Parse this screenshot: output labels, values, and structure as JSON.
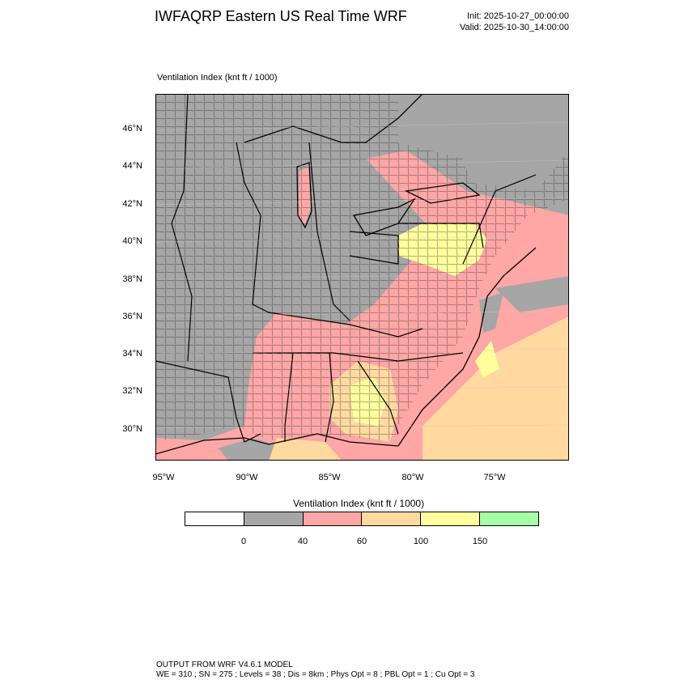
{
  "header": {
    "title": "IWFAQRP Eastern US Real Time WRF",
    "init": "Init: 2025-10-27_00:00:00",
    "valid": "Valid: 2025-10-30_14:00:00"
  },
  "map": {
    "subtitle": "Ventilation Index   (knt ft / 1000)",
    "lat_labels": [
      "46°N",
      "44°N",
      "42°N",
      "40°N",
      "38°N",
      "36°N",
      "34°N",
      "32°N",
      "30°N"
    ],
    "lon_labels": [
      "95°W",
      "90°W",
      "85°W",
      "80°W",
      "75°W"
    ]
  },
  "legend": {
    "title": "Ventilation Index  (knt ft / 1000)",
    "colors": [
      "#ffffff",
      "#a6a6a6",
      "#ffa6a6",
      "#ffd9a0",
      "#ffff9e",
      "#a6ffa6"
    ],
    "labels": [
      "0",
      "40",
      "60",
      "100",
      "150"
    ]
  },
  "footer": {
    "line1": "OUTPUT FROM WRF V4.6.1 MODEL",
    "line2": "WE = 310 ; SN = 275 ; Levels = 38 ; Dis = 8km ; Phys Opt = 8 ; PBL Opt = 1 ; Cu Opt = 3"
  }
}
